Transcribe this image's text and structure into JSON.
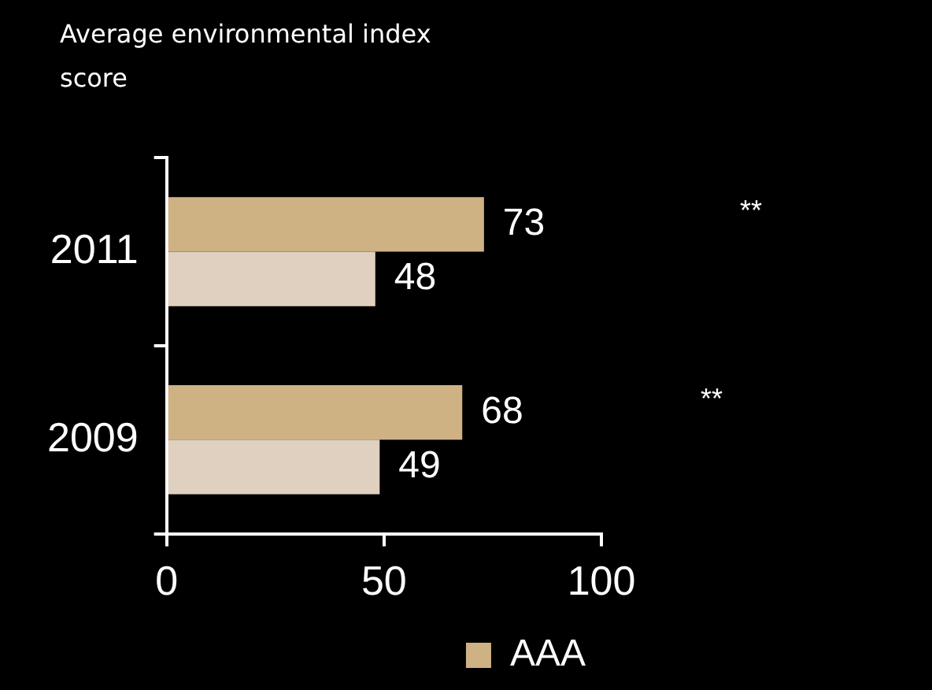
{
  "chart_data": {
    "type": "bar",
    "orientation": "horizontal",
    "title": "Average environmental index score",
    "categories": [
      "2011",
      "2009"
    ],
    "series": [
      {
        "name": "AAA",
        "color": "#cfb284",
        "values": [
          73,
          68
        ]
      },
      {
        "color": "#e0d0c0",
        "values": [
          48,
          49
        ]
      }
    ],
    "xlim": [
      0,
      100
    ],
    "xticks": [
      0,
      50,
      100
    ],
    "grid": false,
    "legend": "bottom right",
    "data_labels": true,
    "annotations": [
      "**",
      "**"
    ]
  }
}
